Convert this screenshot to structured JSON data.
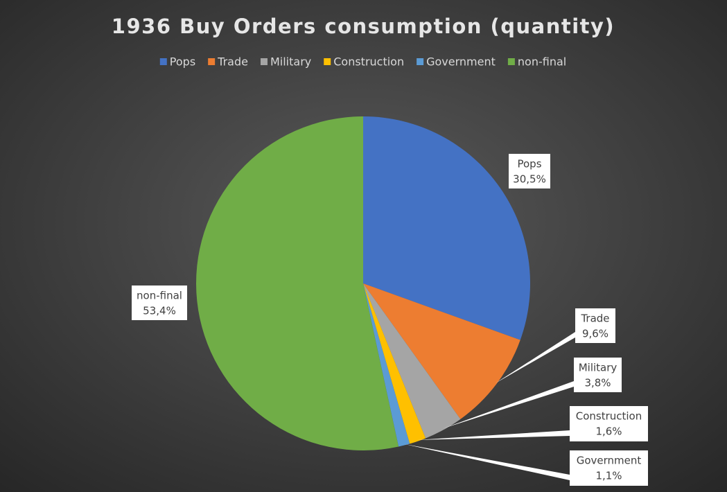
{
  "chart_data": {
    "type": "pie",
    "title": "1936 Buy Orders consumption (quantity)",
    "categories": [
      "Pops",
      "Trade",
      "Military",
      "Construction",
      "Government",
      "non-final"
    ],
    "values": [
      30.5,
      9.6,
      3.8,
      1.6,
      1.1,
      53.4
    ],
    "value_labels": [
      "30,5%",
      "9,6%",
      "3,8%",
      "1,6%",
      "1,1%",
      "53,4%"
    ],
    "colors": [
      "#4472c4",
      "#ed7d31",
      "#a5a5a5",
      "#ffc000",
      "#5b9bd5",
      "#70ad47"
    ],
    "legend": "top"
  }
}
